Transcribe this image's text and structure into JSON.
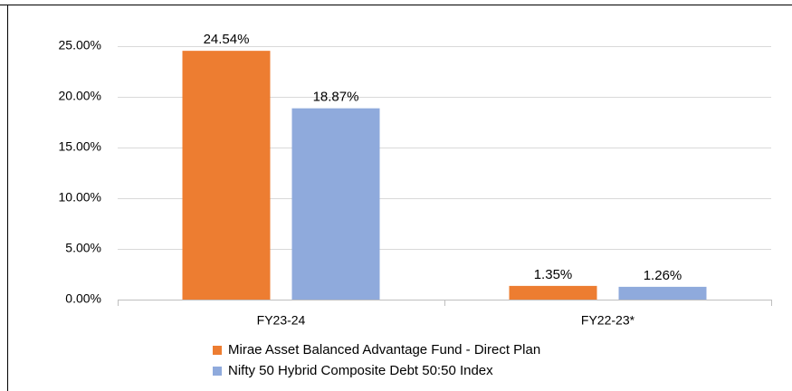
{
  "chart_data": {
    "type": "bar",
    "categories": [
      "FY23-24",
      "FY22-23*"
    ],
    "series": [
      {
        "name": "Mirae Asset Balanced Advantage Fund - Direct Plan",
        "color": "#ed7d31",
        "values": [
          24.54,
          1.35
        ],
        "value_labels": [
          "24.54%",
          "1.35%"
        ]
      },
      {
        "name": "Nifty 50 Hybrid Composite Debt 50:50 Index",
        "color": "#8faadc",
        "values": [
          18.87,
          1.26
        ],
        "value_labels": [
          "18.87%",
          "1.26%"
        ]
      }
    ],
    "ylim": [
      0,
      25
    ],
    "yticks": [
      {
        "value": 0,
        "label": "0.00%"
      },
      {
        "value": 5,
        "label": "5.00%"
      },
      {
        "value": 10,
        "label": "10.00%"
      },
      {
        "value": 15,
        "label": "15.00%"
      },
      {
        "value": 20,
        "label": "20.00%"
      },
      {
        "value": 25,
        "label": "25.00%"
      }
    ],
    "grid": true,
    "legend": "bottom"
  }
}
